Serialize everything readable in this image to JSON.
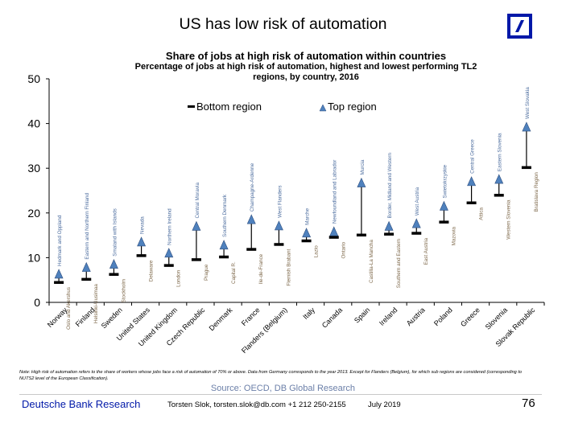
{
  "slide": {
    "title": "US has low risk of automation",
    "logo": "deutsche-bank-logo",
    "brand_color": "#0018a8"
  },
  "chart_data": {
    "type": "range-dot",
    "title": "Share of jobs at high risk of automation within countries",
    "subtitle_line1": "Percentage of jobs at high risk of automation, highest and lowest performing TL2",
    "subtitle_line2": "regions, by country, 2016",
    "xlabel": "",
    "ylabel": "",
    "ylim": [
      0,
      50
    ],
    "yticks": [
      0,
      10,
      20,
      30,
      40,
      50
    ],
    "grid": false,
    "legend": {
      "placement": "top-center",
      "entries": [
        {
          "name": "Bottom region",
          "marker": "bar",
          "color": "#000000"
        },
        {
          "name": "Top region",
          "marker": "triangle",
          "color": "#4f81bd"
        }
      ]
    },
    "categories": [
      "Norway",
      "Finland",
      "Sweden",
      "United States",
      "United Kingdom",
      "Czech Republic",
      "Denmark",
      "France",
      "Flanders (Belgium)",
      "Italy",
      "Canada",
      "Spain",
      "Ireland",
      "Austria",
      "Poland",
      "Greece",
      "Slovenia",
      "Slovak Republic"
    ],
    "series": [
      {
        "name": "Bottom region",
        "values": [
          4.5,
          5.2,
          6.3,
          10.5,
          8.3,
          9.6,
          10.2,
          11.9,
          13.0,
          13.8,
          14.6,
          15.1,
          15.3,
          15.5,
          18.0,
          22.3,
          24.0,
          30.2
        ],
        "labels": [
          "Oslo and Akershus",
          "Helsinki-Uusimaa",
          "Stockholm",
          "Delaware",
          "London",
          "Prague",
          "Capital R.",
          "Ile-de-France",
          "Flemish Brabant",
          "Lazio",
          "Ontario",
          "Castilla-La Mancha",
          "Southern and Eastern",
          "East Austria",
          "Mazovia",
          "Attica",
          "Western Slovenia",
          "Bratislava Region"
        ]
      },
      {
        "name": "Top region",
        "values": [
          6.3,
          7.8,
          8.5,
          13.5,
          11.0,
          17.0,
          12.8,
          18.5,
          17.1,
          15.5,
          15.8,
          26.7,
          17.0,
          17.6,
          21.5,
          27.0,
          27.5,
          39.2
        ],
        "labels": [
          "Hedmark and Oppland",
          "Eastern and Northern Finland",
          "Smaland with Islands",
          "Nevada",
          "Northern Ireland",
          "Central Moravia",
          "Southern Denmark",
          "Champagne-Ardenne",
          "West Flanders",
          "Marche",
          "Newfoundland and Labrador",
          "Murcia",
          "Border, Midland and Western",
          "West Austria",
          "Swietokrzyskie",
          "Central Greece",
          "Eastern Slovenia",
          "West Slovakia"
        ]
      }
    ],
    "colors": {
      "top_marker": "#4f81bd",
      "bottom_marker": "#000000",
      "region_label": "#7f6a4c",
      "top_label": "#4f6fa0"
    }
  },
  "note": "Note: High risk of automation refers to the share of workers whose jobs face a risk of automation of 70% or above. Data from Germany corresponds to the year 2013. Except for Flanders (Belgium), for which sub regions are considered (corresponding to NUTS2 level of the European Classification).",
  "source": "Source: OECD, DB Global Research",
  "footer": {
    "brand": "Deutsche Bank Research",
    "author": "Torsten Slok, torsten.slok@db.com  +1 212 250-2155",
    "date": "July 2019",
    "page": "76"
  }
}
